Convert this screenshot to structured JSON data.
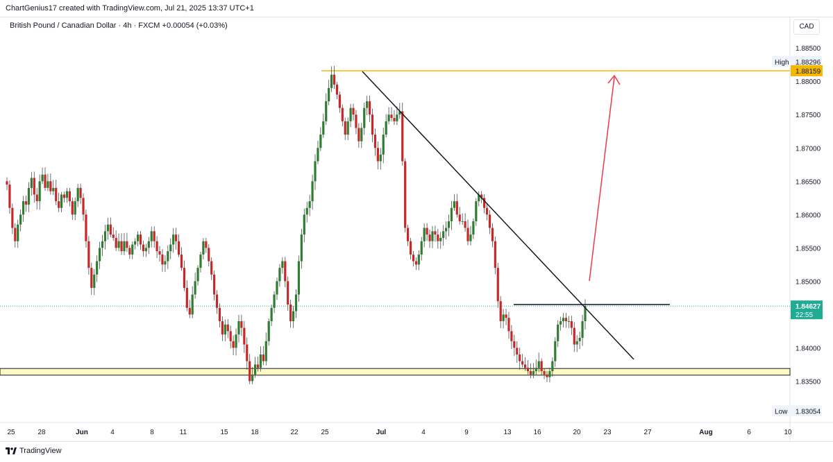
{
  "header": {
    "credit": "ChartGenius17 created with TradingView.com, Jul 21, 2025 13:37 UTC+1"
  },
  "legend": {
    "symbol": "British Pound / Canadian Dollar",
    "interval": "4h",
    "exchange": "FXCM",
    "change": "+0.00054 (+0.03%)"
  },
  "currency_button": "CAD",
  "footer": {
    "brand": "TradingView"
  },
  "colors": {
    "up": "#2e7d32",
    "down": "#c62828",
    "resistance": "#f5b800",
    "support_zone": "#fff9c4",
    "arrow": "#f23645",
    "price_label": "#22ab94",
    "trendline": "#131722"
  },
  "chart_data": {
    "type": "candlestick",
    "symbol": "GBPCAD",
    "interval": "4h",
    "ylim": [
      1.8288,
      1.8896
    ],
    "x_ticks": [
      "25",
      "28",
      "Jun",
      "4",
      "8",
      "11",
      "15",
      "18",
      "22",
      "25",
      "Jul",
      "4",
      "9",
      "13",
      "16",
      "20",
      "23",
      "27",
      "Aug",
      "6",
      "10"
    ],
    "y_ticks": [
      "1.88500",
      "1.88000",
      "1.87500",
      "1.87000",
      "1.86500",
      "1.86000",
      "1.85500",
      "1.85000",
      "1.84000",
      "1.83500"
    ],
    "high_label": "High",
    "high_value": "1.88296",
    "low_label": "Low",
    "low_value": "1.83054",
    "resistance_value": "1.88159",
    "last_price": "1.84627",
    "countdown": "22:55",
    "support_zone": [
      1.8359,
      1.8369
    ],
    "closes": [
      1.8645,
      1.861,
      1.858,
      1.856,
      1.8585,
      1.86,
      1.862,
      1.8615,
      1.864,
      1.8655,
      1.863,
      1.862,
      1.865,
      1.866,
      1.864,
      1.865,
      1.8635,
      1.864,
      1.862,
      1.861,
      1.863,
      1.8625,
      1.8635,
      1.862,
      1.86,
      1.862,
      1.864,
      1.8625,
      1.86,
      1.856,
      1.852,
      1.849,
      1.851,
      1.853,
      1.855,
      1.856,
      1.8575,
      1.8585,
      1.857,
      1.8565,
      1.855,
      1.856,
      1.8545,
      1.856,
      1.855,
      1.854,
      1.8555,
      1.856,
      1.857,
      1.8555,
      1.8545,
      1.855,
      1.856,
      1.8575,
      1.856,
      1.8545,
      1.854,
      1.8525,
      1.853,
      1.8545,
      1.8555,
      1.857,
      1.856,
      1.854,
      1.852,
      1.849,
      1.846,
      1.845,
      1.848,
      1.85,
      1.852,
      1.854,
      1.856,
      1.855,
      1.853,
      1.851,
      1.848,
      1.846,
      1.844,
      1.842,
      1.8435,
      1.8425,
      1.841,
      1.84,
      1.842,
      1.844,
      1.843,
      1.8405,
      1.838,
      1.835,
      1.836,
      1.8375,
      1.837,
      1.839,
      1.838,
      1.841,
      1.844,
      1.846,
      1.848,
      1.85,
      1.852,
      1.853,
      1.85,
      1.8465,
      1.844,
      1.8455,
      1.848,
      1.853,
      1.857,
      1.86,
      1.861,
      1.862,
      1.865,
      1.868,
      1.87,
      1.872,
      1.874,
      1.877,
      1.879,
      1.881,
      1.8795,
      1.878,
      1.876,
      1.874,
      1.872,
      1.874,
      1.876,
      1.875,
      1.873,
      1.871,
      1.873,
      1.876,
      1.877,
      1.875,
      1.872,
      1.87,
      1.868,
      1.869,
      1.872,
      1.874,
      1.875,
      1.8745,
      1.874,
      1.875,
      1.8755,
      1.868,
      1.858,
      1.856,
      1.854,
      1.853,
      1.8525,
      1.854,
      1.856,
      1.858,
      1.857,
      1.856,
      1.8575,
      1.857,
      1.856,
      1.8565,
      1.8575,
      1.858,
      1.859,
      1.861,
      1.862,
      1.86,
      1.859,
      1.859,
      1.858,
      1.856,
      1.857,
      1.859,
      1.862,
      1.863,
      1.8625,
      1.861,
      1.86,
      1.858,
      1.856,
      1.852,
      1.847,
      1.844,
      1.845,
      1.8445,
      1.8425,
      1.841,
      1.84,
      1.839,
      1.838,
      1.8375,
      1.837,
      1.8365,
      1.836,
      1.8365,
      1.837,
      1.838,
      1.8365,
      1.836,
      1.8356,
      1.8365,
      1.838,
      1.841,
      1.8435,
      1.844,
      1.8445,
      1.844,
      1.844,
      1.843,
      1.8405,
      1.841,
      1.8415,
      1.844,
      1.8463
    ]
  }
}
